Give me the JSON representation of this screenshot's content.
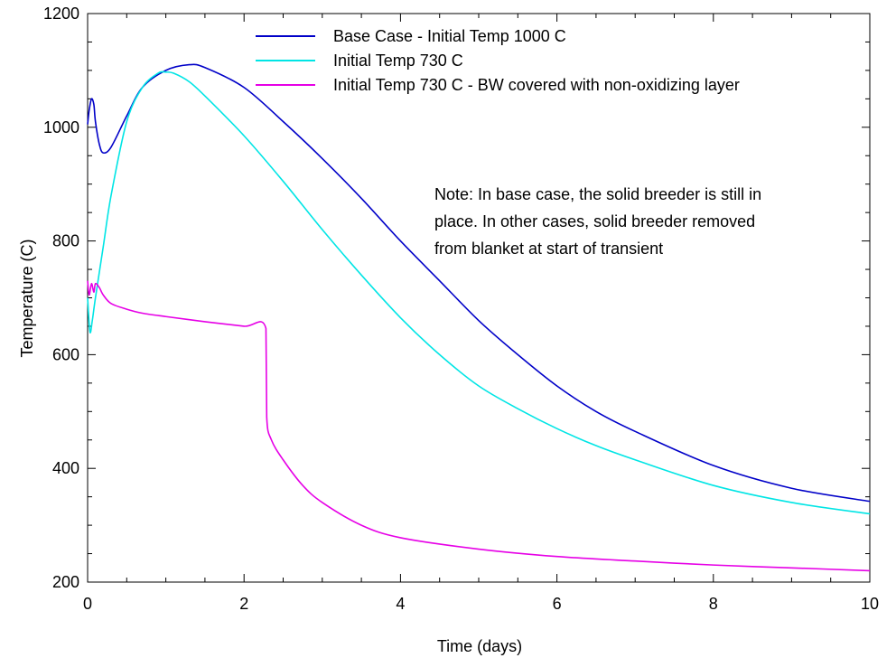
{
  "chart_data": {
    "type": "line",
    "xlabel": "Time (days)",
    "ylabel": "Temperature (C)",
    "xlim": [
      0,
      10
    ],
    "ylim": [
      200,
      1200
    ],
    "x_ticks": [
      0,
      2,
      4,
      6,
      8,
      10
    ],
    "y_ticks": [
      200,
      400,
      600,
      800,
      1000,
      1200
    ],
    "grid": false,
    "legend_position": "top-right",
    "annotation": [
      "Note: In base case, the solid breeder is still in",
      "place.  In other cases, solid breeder removed",
      "from blanket at start of transient"
    ],
    "series": [
      {
        "name": "Base Case - Initial Temp 1000 C",
        "color": "#0000c8",
        "x": [
          0,
          0.02,
          0.05,
          0.08,
          0.1,
          0.15,
          0.2,
          0.3,
          0.5,
          0.7,
          1.0,
          1.3,
          1.5,
          2.0,
          2.5,
          3.0,
          3.5,
          4.0,
          4.5,
          5.0,
          5.5,
          6.0,
          6.5,
          7.0,
          8.0,
          9.0,
          10.0
        ],
        "y": [
          1005,
          1030,
          1050,
          1040,
          1010,
          970,
          955,
          965,
          1020,
          1070,
          1100,
          1110,
          1105,
          1070,
          1010,
          945,
          875,
          800,
          730,
          660,
          600,
          545,
          500,
          465,
          405,
          365,
          342
        ]
      },
      {
        "name": "Initial Temp 730 C",
        "color": "#00e5e5",
        "x": [
          0,
          0.03,
          0.06,
          0.1,
          0.2,
          0.3,
          0.5,
          0.7,
          0.9,
          1.0,
          1.1,
          1.3,
          1.5,
          2.0,
          2.5,
          3.0,
          3.5,
          4.0,
          4.5,
          5.0,
          5.5,
          6.0,
          6.5,
          7.0,
          8.0,
          9.0,
          10.0
        ],
        "y": [
          700,
          640,
          660,
          700,
          790,
          880,
          1010,
          1070,
          1095,
          1097,
          1095,
          1080,
          1055,
          985,
          905,
          820,
          740,
          665,
          600,
          545,
          505,
          470,
          440,
          415,
          370,
          340,
          320
        ]
      },
      {
        "name": "Initial Temp 730 C - BW covered with non-oxidizing layer",
        "color": "#e600e6",
        "x": [
          0,
          0.02,
          0.05,
          0.08,
          0.1,
          0.15,
          0.2,
          0.3,
          0.5,
          0.7,
          1.0,
          1.5,
          2.0,
          2.28,
          2.29,
          2.35,
          2.5,
          2.75,
          3.0,
          3.5,
          4.0,
          5.0,
          6.0,
          7.0,
          8.0,
          9.0,
          10.0
        ],
        "y": [
          730,
          705,
          725,
          710,
          725,
          718,
          705,
          690,
          680,
          673,
          667,
          658,
          650,
          646,
          490,
          450,
          415,
          370,
          340,
          300,
          278,
          258,
          245,
          237,
          230,
          225,
          220
        ]
      }
    ]
  }
}
